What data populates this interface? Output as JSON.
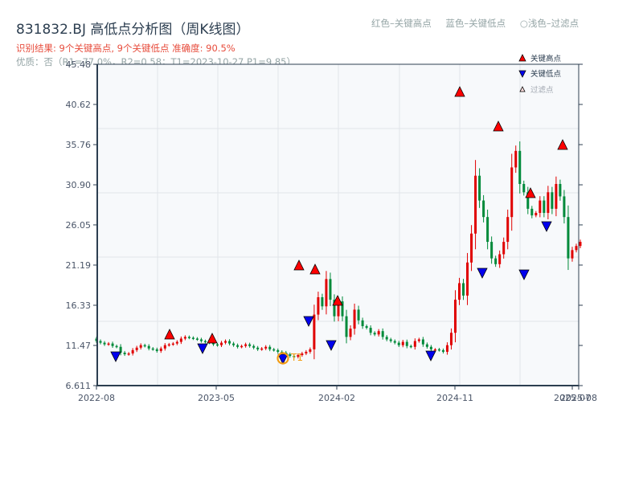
{
  "header": {
    "title": "831832.BJ 高低点分析图（周K线图）",
    "result_line": "识别结果: 9个关键高点, 9个关键低点   准确度: 90.5%",
    "quality_line": "优质：否（R1=77.0%，R2=0.58；T1=2023-10-27 P1=9.85）",
    "color_legend": [
      "红色–关键高点",
      "蓝色–关键低点",
      "○浅色–过滤点"
    ]
  },
  "legend": {
    "items": [
      {
        "label": "关键高点",
        "marker": "triangle-up",
        "color": "#ff0000"
      },
      {
        "label": "关键低点",
        "marker": "triangle-down",
        "color": "#0000ff"
      },
      {
        "label": "过滤点",
        "marker": "triangle-up-light",
        "color": "#ffcccc"
      }
    ]
  },
  "colors": {
    "up": "#e00000",
    "down": "#008a3a",
    "high_marker": "#ff0000",
    "low_marker": "#0000ee",
    "t1_circle": "#f39c12",
    "axis": "#2c3e50",
    "grid": "#e2e5ea",
    "plot_bg": "#f7f9fb"
  },
  "annotation": {
    "label": "T1",
    "date": "2023-10-27",
    "price": 9.85
  },
  "chart_data": {
    "type": "candlestick",
    "title": "831832.BJ 高低点分析图（周K线图）",
    "xlabel": "",
    "ylabel": "",
    "ylim": [
      6.611,
      45.48
    ],
    "yticks": [
      "6.611",
      "11.47",
      "16.33",
      "21.19",
      "26.05",
      "30.90",
      "35.76",
      "40.62",
      "45.48"
    ],
    "xticks": [
      "2022-08",
      "2023-05",
      "2024-02",
      "2024-11",
      "2025-07",
      "2025-08"
    ],
    "grid": true,
    "legend_position": "upper right",
    "key_highs": [
      {
        "date": "2022-12",
        "price": 12.7
      },
      {
        "date": "2023-04",
        "price": 12.1
      },
      {
        "date": "2023-12",
        "price": 21.3
      },
      {
        "date": "2023-12",
        "price": 20.7
      },
      {
        "date": "2024-02",
        "price": 17.1
      },
      {
        "date": "2024-11",
        "price": 42.0
      },
      {
        "date": "2025-01",
        "price": 38.0
      },
      {
        "date": "2025-03",
        "price": 29.9
      },
      {
        "date": "2025-06",
        "price": 35.7
      }
    ],
    "key_lows": [
      {
        "date": "2022-09",
        "price": 10.3
      },
      {
        "date": "2023-04",
        "price": 11.3
      },
      {
        "date": "2023-10",
        "price": 9.85
      },
      {
        "date": "2023-12",
        "price": 14.3
      },
      {
        "date": "2024-01",
        "price": 11.5
      },
      {
        "date": "2024-10",
        "price": 10.3
      },
      {
        "date": "2024-12",
        "price": 20.3
      },
      {
        "date": "2025-02",
        "price": 20.1
      },
      {
        "date": "2025-04",
        "price": 25.8
      }
    ],
    "price_path_close": [
      12.0,
      11.8,
      11.6,
      11.7,
      11.4,
      11.3,
      10.6,
      10.4,
      10.5,
      10.9,
      11.2,
      11.5,
      11.4,
      11.1,
      11.0,
      10.8,
      11.1,
      11.5,
      11.6,
      11.7,
      11.9,
      12.3,
      12.5,
      12.4,
      12.3,
      12.2,
      12.0,
      11.9,
      11.8,
      11.6,
      11.5,
      11.8,
      12.0,
      11.7,
      11.5,
      11.3,
      11.4,
      11.6,
      11.4,
      11.2,
      11.0,
      11.1,
      11.3,
      11.0,
      10.9,
      10.7,
      10.6,
      10.4,
      10.2,
      10.1,
      10.3,
      10.5,
      10.7,
      11.0,
      15.2,
      17.3,
      16.2,
      19.5,
      17.0,
      15.0,
      16.8,
      15.0,
      12.5,
      13.5,
      15.8,
      14.5,
      13.8,
      13.6,
      13.0,
      12.8,
      13.2,
      12.5,
      12.2,
      12.0,
      11.8,
      11.5,
      11.9,
      11.4,
      11.3,
      12.0,
      12.2,
      11.6,
      11.3,
      11.0,
      11.0,
      10.9,
      10.7,
      11.5,
      13.0,
      17.0,
      19.0,
      17.5,
      21.5,
      25.0,
      32.0,
      29.0,
      27.0,
      24.0,
      22.0,
      21.3,
      22.5,
      24.0,
      27.0,
      33.0,
      35.0,
      31.0,
      30.0,
      28.0,
      27.2,
      27.5,
      29.0,
      27.5,
      30.0,
      28.0,
      31.0,
      29.5,
      27.0,
      22.0,
      23.0,
      23.5,
      24.0
    ]
  }
}
